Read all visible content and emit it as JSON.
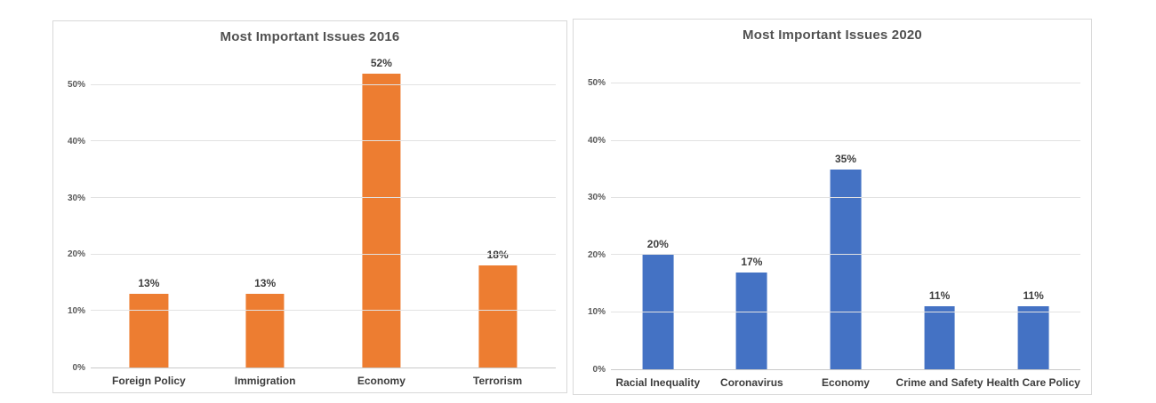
{
  "page": {
    "background_color": "#FFFFFF"
  },
  "chart_data": [
    {
      "type": "bar",
      "title": "Most Important Issues 2016",
      "categories": [
        "Foreign Policy",
        "Immigration",
        "Economy",
        "Terrorism"
      ],
      "values": [
        13,
        13,
        52,
        18
      ],
      "data_labels": [
        "13%",
        "13%",
        "52%",
        "18%"
      ],
      "bar_color": "#ED7D31",
      "ylim": [
        0,
        55
      ],
      "y_ticks": [
        {
          "value": 0,
          "label": "0%"
        },
        {
          "value": 10,
          "label": "10%"
        },
        {
          "value": 20,
          "label": "20%"
        },
        {
          "value": 30,
          "label": "30%"
        },
        {
          "value": 40,
          "label": "40%"
        },
        {
          "value": 50,
          "label": "50%"
        }
      ],
      "xlabel": "",
      "ylabel": "",
      "grid": true,
      "legend": false,
      "gridline_color": "#E2E2E2",
      "border_color": "#D9D9D9",
      "title_color": "#515151",
      "label_color": "#3D3D3D",
      "tick_color": "#595959"
    },
    {
      "type": "bar",
      "title": "Most Important Issues 2020",
      "categories": [
        "Racial Inequality",
        "Coronavirus",
        "Economy",
        "Crime and Safety",
        "Health Care Policy"
      ],
      "values": [
        20,
        17,
        35,
        11,
        11
      ],
      "data_labels": [
        "20%",
        "17%",
        "35%",
        "11%",
        "11%"
      ],
      "bar_color": "#4472C4",
      "ylim": [
        0,
        55
      ],
      "y_ticks": [
        {
          "value": 0,
          "label": "0%"
        },
        {
          "value": 10,
          "label": "10%"
        },
        {
          "value": 20,
          "label": "20%"
        },
        {
          "value": 30,
          "label": "30%"
        },
        {
          "value": 40,
          "label": "40%"
        },
        {
          "value": 50,
          "label": "50%"
        }
      ],
      "xlabel": "",
      "ylabel": "",
      "grid": true,
      "legend": false,
      "gridline_color": "#E2E2E2",
      "border_color": "#D9D9D9",
      "title_color": "#515151",
      "label_color": "#3D3D3D",
      "tick_color": "#595959"
    }
  ]
}
